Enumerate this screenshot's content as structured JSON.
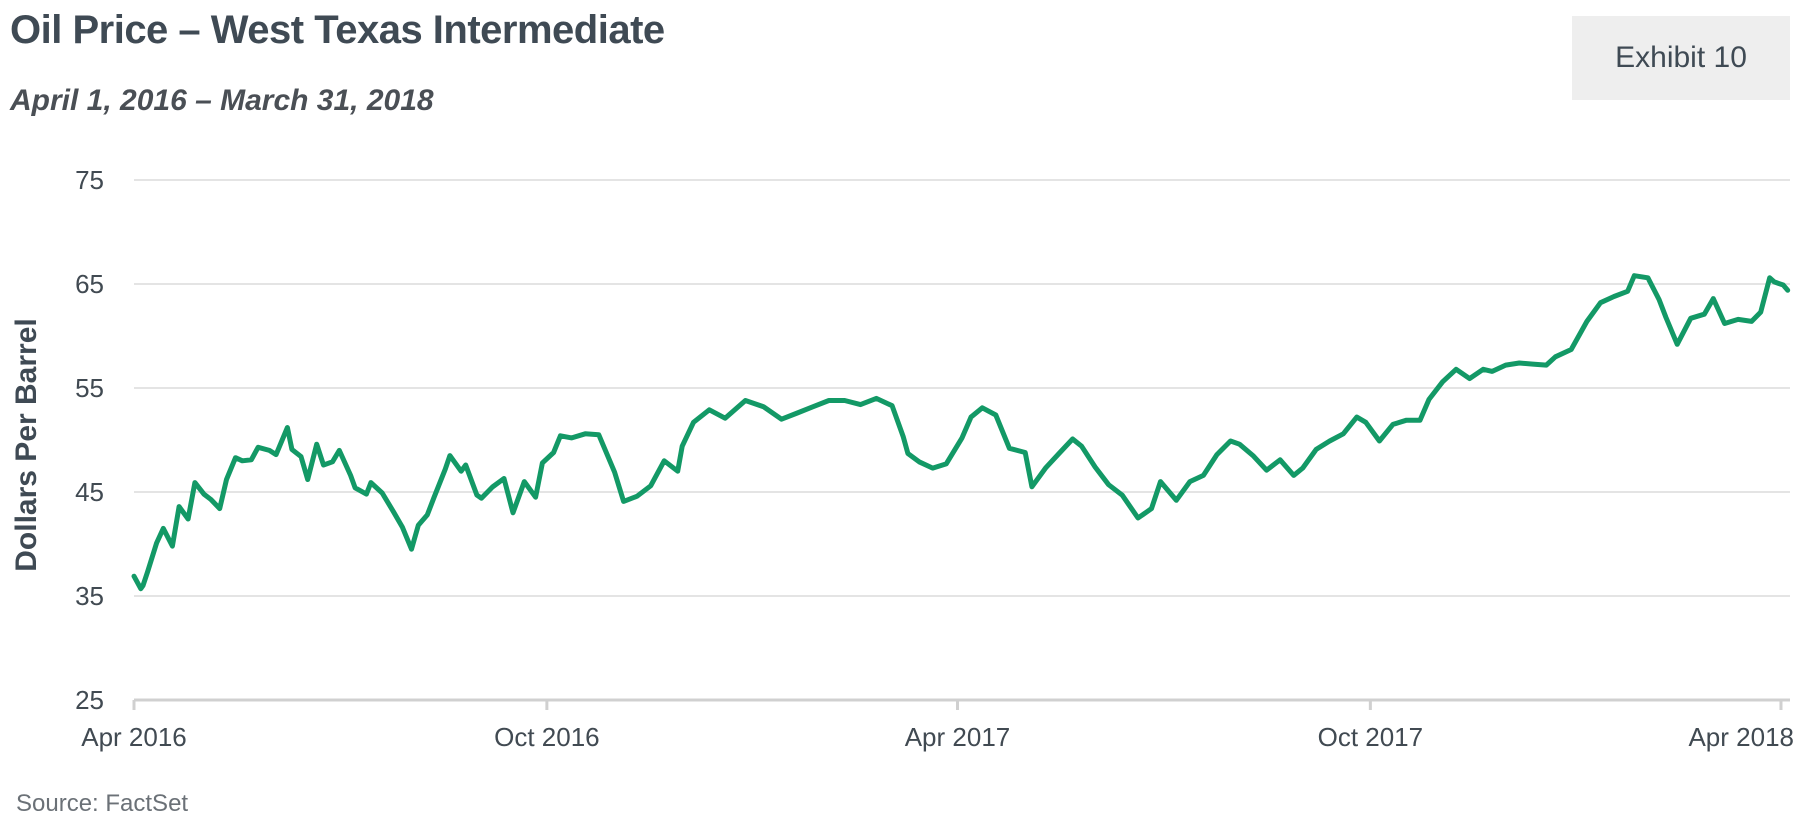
{
  "header": {
    "title": "Oil Price – West Texas Intermediate",
    "subtitle": "April 1, 2016 – March 31, 2018",
    "exhibit": "Exhibit 10"
  },
  "footer": {
    "source": "Source: FactSet"
  },
  "colors": {
    "line": "#139966",
    "grid": "#dcdcdc",
    "axis": "#d0d0d0",
    "text": "#414a52"
  },
  "chart_data": {
    "type": "line",
    "ylabel": "Dollars Per Barrel",
    "ylim": [
      25,
      75
    ],
    "yticks": [
      25,
      35,
      45,
      55,
      65,
      75
    ],
    "xlim": [
      "2016-04-01",
      "2018-04-05"
    ],
    "xticks": [
      {
        "date": "2016-04-01",
        "label": "Apr 2016"
      },
      {
        "date": "2016-10-01",
        "label": "Oct 2016"
      },
      {
        "date": "2017-04-01",
        "label": "Apr 2017"
      },
      {
        "date": "2017-10-01",
        "label": "Oct 2017"
      },
      {
        "date": "2018-04-01",
        "label": "Apr 2018"
      }
    ],
    "grid": true,
    "series": [
      {
        "x": [
          "2016-04-01",
          "2016-04-04",
          "2016-04-05",
          "2016-04-07",
          "2016-04-11",
          "2016-04-14",
          "2016-04-18",
          "2016-04-21",
          "2016-04-25",
          "2016-04-28",
          "2016-05-02",
          "2016-05-05",
          "2016-05-09",
          "2016-05-12",
          "2016-05-16",
          "2016-05-19",
          "2016-05-23",
          "2016-05-26",
          "2016-05-31",
          "2016-06-03",
          "2016-06-08",
          "2016-06-10",
          "2016-06-14",
          "2016-06-17",
          "2016-06-21",
          "2016-06-24",
          "2016-06-28",
          "2016-07-01",
          "2016-07-06",
          "2016-07-08",
          "2016-07-13",
          "2016-07-15",
          "2016-07-20",
          "2016-07-25",
          "2016-07-29",
          "2016-08-02",
          "2016-08-05",
          "2016-08-09",
          "2016-08-12",
          "2016-08-17",
          "2016-08-19",
          "2016-08-24",
          "2016-08-26",
          "2016-08-31",
          "2016-09-02",
          "2016-09-07",
          "2016-09-12",
          "2016-09-16",
          "2016-09-21",
          "2016-09-26",
          "2016-09-29",
          "2016-10-04",
          "2016-10-07",
          "2016-10-12",
          "2016-10-18",
          "2016-10-24",
          "2016-10-31",
          "2016-11-04",
          "2016-11-10",
          "2016-11-16",
          "2016-11-22",
          "2016-11-28",
          "2016-11-30",
          "2016-12-05",
          "2016-12-12",
          "2016-12-19",
          "2016-12-28",
          "2017-01-05",
          "2017-01-13",
          "2017-01-20",
          "2017-01-27",
          "2017-02-03",
          "2017-02-10",
          "2017-02-17",
          "2017-02-24",
          "2017-03-03",
          "2017-03-08",
          "2017-03-10",
          "2017-03-15",
          "2017-03-21",
          "2017-03-27",
          "2017-04-03",
          "2017-04-07",
          "2017-04-12",
          "2017-04-18",
          "2017-04-24",
          "2017-05-01",
          "2017-05-04",
          "2017-05-10",
          "2017-05-16",
          "2017-05-22",
          "2017-05-26",
          "2017-06-01",
          "2017-06-07",
          "2017-06-13",
          "2017-06-20",
          "2017-06-26",
          "2017-06-30",
          "2017-07-07",
          "2017-07-13",
          "2017-07-19",
          "2017-07-25",
          "2017-07-31",
          "2017-08-04",
          "2017-08-10",
          "2017-08-16",
          "2017-08-22",
          "2017-08-28",
          "2017-09-01",
          "2017-09-07",
          "2017-09-13",
          "2017-09-19",
          "2017-09-25",
          "2017-09-29",
          "2017-10-05",
          "2017-10-11",
          "2017-10-17",
          "2017-10-23",
          "2017-10-27",
          "2017-11-02",
          "2017-11-08",
          "2017-11-14",
          "2017-11-20",
          "2017-11-24",
          "2017-11-30",
          "2017-12-06",
          "2017-12-12",
          "2017-12-18",
          "2017-12-22",
          "2017-12-29",
          "2018-01-05",
          "2018-01-11",
          "2018-01-17",
          "2018-01-23",
          "2018-01-26",
          "2018-02-01",
          "2018-02-06",
          "2018-02-09",
          "2018-02-14",
          "2018-02-20",
          "2018-02-26",
          "2018-03-02",
          "2018-03-07",
          "2018-03-13",
          "2018-03-19",
          "2018-03-23",
          "2018-03-27",
          "2018-03-29",
          "2018-04-02",
          "2018-04-04"
        ],
        "y": [
          36.9,
          35.7,
          36.0,
          37.3,
          40.1,
          41.5,
          39.8,
          43.6,
          42.4,
          45.9,
          44.8,
          44.3,
          43.4,
          46.2,
          48.3,
          48.0,
          48.1,
          49.3,
          49.0,
          48.6,
          51.2,
          49.1,
          48.4,
          46.2,
          49.6,
          47.6,
          47.9,
          49.0,
          46.6,
          45.4,
          44.8,
          45.9,
          44.9,
          43.1,
          41.6,
          39.5,
          41.8,
          42.8,
          44.5,
          47.2,
          48.5,
          47.0,
          47.6,
          44.7,
          44.4,
          45.5,
          46.3,
          43.0,
          46.0,
          44.5,
          47.8,
          48.8,
          50.4,
          50.2,
          50.6,
          50.5,
          46.9,
          44.1,
          44.6,
          45.6,
          48.0,
          47.0,
          49.4,
          51.7,
          52.9,
          52.1,
          53.8,
          53.2,
          52.0,
          52.6,
          53.2,
          53.8,
          53.8,
          53.4,
          54.0,
          53.3,
          50.3,
          48.7,
          47.9,
          47.3,
          47.7,
          50.2,
          52.2,
          53.1,
          52.4,
          49.2,
          48.8,
          45.5,
          47.3,
          48.7,
          50.1,
          49.4,
          47.4,
          45.7,
          44.7,
          42.5,
          43.4,
          46.0,
          44.2,
          46.0,
          46.6,
          48.6,
          49.9,
          49.6,
          48.5,
          47.1,
          48.1,
          46.6,
          47.3,
          49.1,
          49.9,
          50.6,
          52.2,
          51.7,
          49.9,
          51.5,
          51.9,
          51.9,
          53.9,
          55.6,
          56.8,
          55.9,
          56.8,
          56.6,
          57.2,
          57.4,
          57.3,
          57.2,
          58.0,
          58.7,
          61.4,
          63.2,
          63.8,
          64.3,
          65.8,
          65.6,
          63.5,
          61.8,
          59.2,
          61.7,
          62.1,
          63.6,
          61.2,
          61.6,
          61.4,
          62.3,
          65.6,
          65.2,
          64.9,
          64.4
        ]
      }
    ]
  }
}
